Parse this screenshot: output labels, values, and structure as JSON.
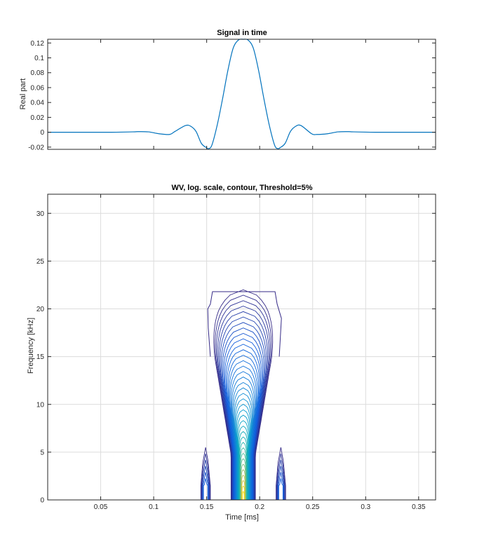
{
  "colors": {
    "signal_line": "#0072bd",
    "contour_low": "#2c2a8f",
    "contour_mid": "#1fa3c9",
    "contour_high": "#f9e21d",
    "grid": "#dcdcdc",
    "axes": "#262626"
  },
  "chart_data": [
    {
      "type": "line",
      "title": "Signal in time",
      "xlabel": "",
      "ylabel": "Real part",
      "xlim": [
        0,
        0.366
      ],
      "ylim": [
        -0.023,
        0.125
      ],
      "x_ticks": [
        0.05,
        0.1,
        0.15,
        0.2,
        0.25,
        0.3,
        0.35
      ],
      "x_tick_labels": [],
      "y_ticks": [
        -0.02,
        0,
        0.02,
        0.04,
        0.06,
        0.08,
        0.1,
        0.12
      ],
      "y_tick_labels": [
        "-0.02",
        "0",
        "0.02",
        "0.04",
        "0.06",
        "0.08",
        "0.1",
        "0.12"
      ],
      "grid": false,
      "series": [
        {
          "x": [
            0,
            0.06,
            0.08,
            0.085,
            0.095,
            0.105,
            0.115,
            0.12,
            0.13,
            0.135,
            0.14,
            0.145,
            0.15,
            0.152,
            0.155,
            0.16,
            0.165,
            0.17,
            0.175,
            0.18,
            0.1845,
            0.189,
            0.194,
            0.199,
            0.204,
            0.209,
            0.214,
            0.217,
            0.219,
            0.224,
            0.229,
            0.234,
            0.239,
            0.249,
            0.254,
            0.264,
            0.274,
            0.284,
            0.289,
            0.309,
            0.366
          ],
          "y": [
            0,
            0,
            0.0005,
            0.0008,
            0.0005,
            -0.002,
            -0.003,
            0.001,
            0.009,
            0.008,
            0.001,
            -0.015,
            -0.021,
            -0.022,
            -0.017,
            0.01,
            0.045,
            0.083,
            0.113,
            0.124,
            0.125,
            0.124,
            0.113,
            0.083,
            0.045,
            0.01,
            -0.017,
            -0.022,
            -0.021,
            -0.015,
            0.001,
            0.008,
            0.009,
            -0.002,
            -0.003,
            -0.002,
            0.0005,
            0.0008,
            0.0005,
            0,
            0
          ]
        }
      ]
    },
    {
      "type": "contour",
      "title": "WV, log. scale, contour, Threshold=5%",
      "xlabel": "Time [ms]",
      "ylabel": "Frequency [kHz]",
      "xlim": [
        0,
        0.366
      ],
      "ylim": [
        0,
        32
      ],
      "x_ticks": [
        0.05,
        0.1,
        0.15,
        0.2,
        0.25,
        0.3,
        0.35
      ],
      "x_tick_labels": [
        "0.05",
        "0.1",
        "0.15",
        "0.2",
        "0.25",
        "0.3",
        "0.35"
      ],
      "y_ticks": [
        0,
        5,
        10,
        15,
        20,
        25,
        30
      ],
      "y_tick_labels": [
        "0",
        "5",
        "10",
        "15",
        "20",
        "25",
        "30"
      ],
      "grid": true,
      "colormap": "parula",
      "threshold_percent": 5,
      "center_time_ms": 0.1845,
      "max_frequency_khz": 22,
      "contour_levels": 38
    }
  ]
}
